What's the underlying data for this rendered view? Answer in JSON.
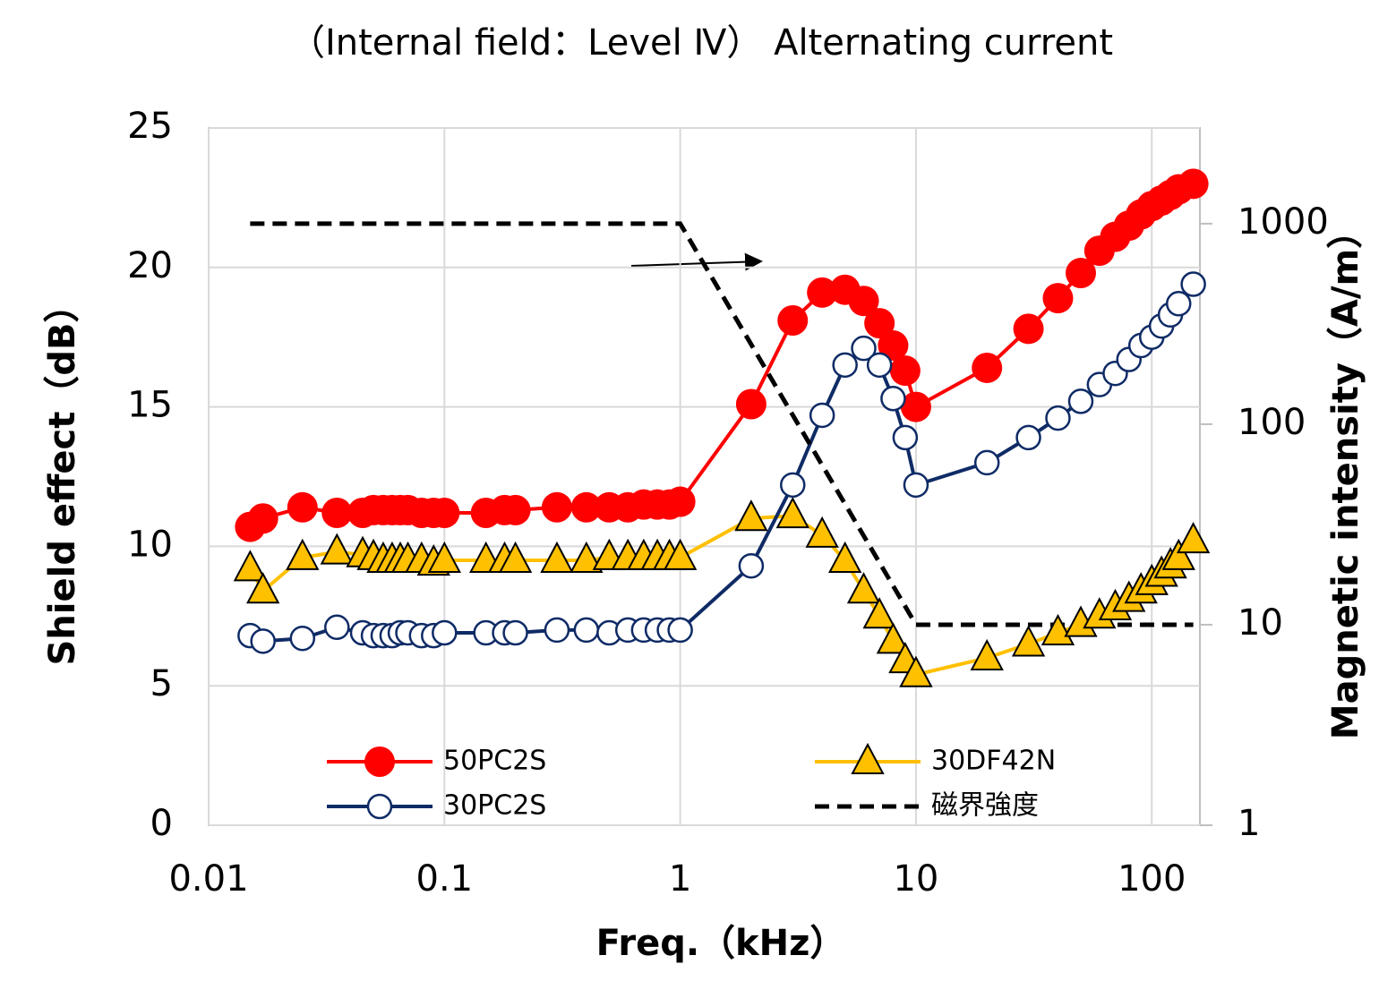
{
  "chart_data": {
    "type": "line",
    "title": "（Internal field：Level Ⅳ） Alternating current",
    "x_label": "Freq.（kHz）",
    "y_label": "Shield effect（dB）",
    "y2_label": "Magnetic intensity（A/m）",
    "x_log": true,
    "y2_log": true,
    "grid": true,
    "xlim": [
      0.01,
      160
    ],
    "xticks": [
      0.01,
      0.1,
      1,
      10,
      100
    ],
    "ylim": [
      0,
      25
    ],
    "yticks": [
      0,
      5,
      10,
      15,
      20,
      25
    ],
    "y2lim": [
      1,
      3000
    ],
    "y2ticks": [
      1,
      10,
      100,
      1000
    ],
    "x": [
      0.015,
      0.017,
      0.025,
      0.035,
      0.045,
      0.05,
      0.055,
      0.06,
      0.065,
      0.07,
      0.08,
      0.09,
      0.1,
      0.15,
      0.18,
      0.2,
      0.3,
      0.4,
      0.5,
      0.6,
      0.7,
      0.8,
      0.9,
      1,
      2,
      3,
      4,
      5,
      6,
      7,
      8,
      9,
      10,
      20,
      30,
      40,
      50,
      60,
      70,
      80,
      90,
      100,
      110,
      120,
      130,
      150
    ],
    "series": [
      {
        "name": "50PC2S",
        "color": "#ff0000",
        "marker": "circle",
        "values": [
          10.7,
          11.0,
          11.4,
          11.2,
          11.2,
          11.3,
          11.3,
          11.3,
          11.3,
          11.3,
          11.2,
          11.2,
          11.2,
          11.2,
          11.3,
          11.3,
          11.4,
          11.4,
          11.4,
          11.4,
          11.5,
          11.5,
          11.5,
          11.6,
          15.1,
          18.1,
          19.1,
          19.2,
          18.8,
          18.0,
          17.2,
          16.3,
          15.0,
          16.4,
          17.8,
          18.9,
          19.8,
          20.6,
          21.1,
          21.5,
          21.9,
          22.2,
          22.4,
          22.6,
          22.8,
          23.0
        ]
      },
      {
        "name": "30DF42N",
        "color": "#ffc000",
        "marker": "triangle",
        "values": [
          9.2,
          8.4,
          9.6,
          9.8,
          9.7,
          9.6,
          9.5,
          9.5,
          9.5,
          9.5,
          9.5,
          9.4,
          9.5,
          9.5,
          9.5,
          9.5,
          9.5,
          9.5,
          9.6,
          9.6,
          9.6,
          9.6,
          9.6,
          9.6,
          11.0,
          11.1,
          10.4,
          9.5,
          8.4,
          7.5,
          6.6,
          5.9,
          5.4,
          6.0,
          6.5,
          6.9,
          7.2,
          7.5,
          7.8,
          8.1,
          8.4,
          8.7,
          9.0,
          9.3,
          9.6,
          10.2
        ]
      },
      {
        "name": "30PC2S",
        "color": "#0f2b66",
        "marker": "open-circle",
        "values": [
          6.8,
          6.6,
          6.7,
          7.1,
          6.9,
          6.8,
          6.8,
          6.8,
          6.9,
          6.9,
          6.8,
          6.8,
          6.9,
          6.9,
          6.9,
          6.9,
          7.0,
          7.0,
          6.9,
          7.0,
          7.0,
          7.0,
          7.0,
          7.0,
          9.3,
          12.2,
          14.7,
          16.5,
          17.1,
          16.5,
          15.3,
          13.9,
          12.2,
          13.0,
          13.9,
          14.6,
          15.2,
          15.8,
          16.2,
          16.7,
          17.2,
          17.5,
          17.9,
          18.3,
          18.7,
          19.4
        ]
      },
      {
        "name": "磁界強度",
        "color": "#000000",
        "marker": "none",
        "dashed": true,
        "axis": "y2",
        "x": [
          0.015,
          1,
          10,
          150
        ],
        "values": [
          1000,
          1000,
          10,
          10
        ]
      }
    ]
  }
}
